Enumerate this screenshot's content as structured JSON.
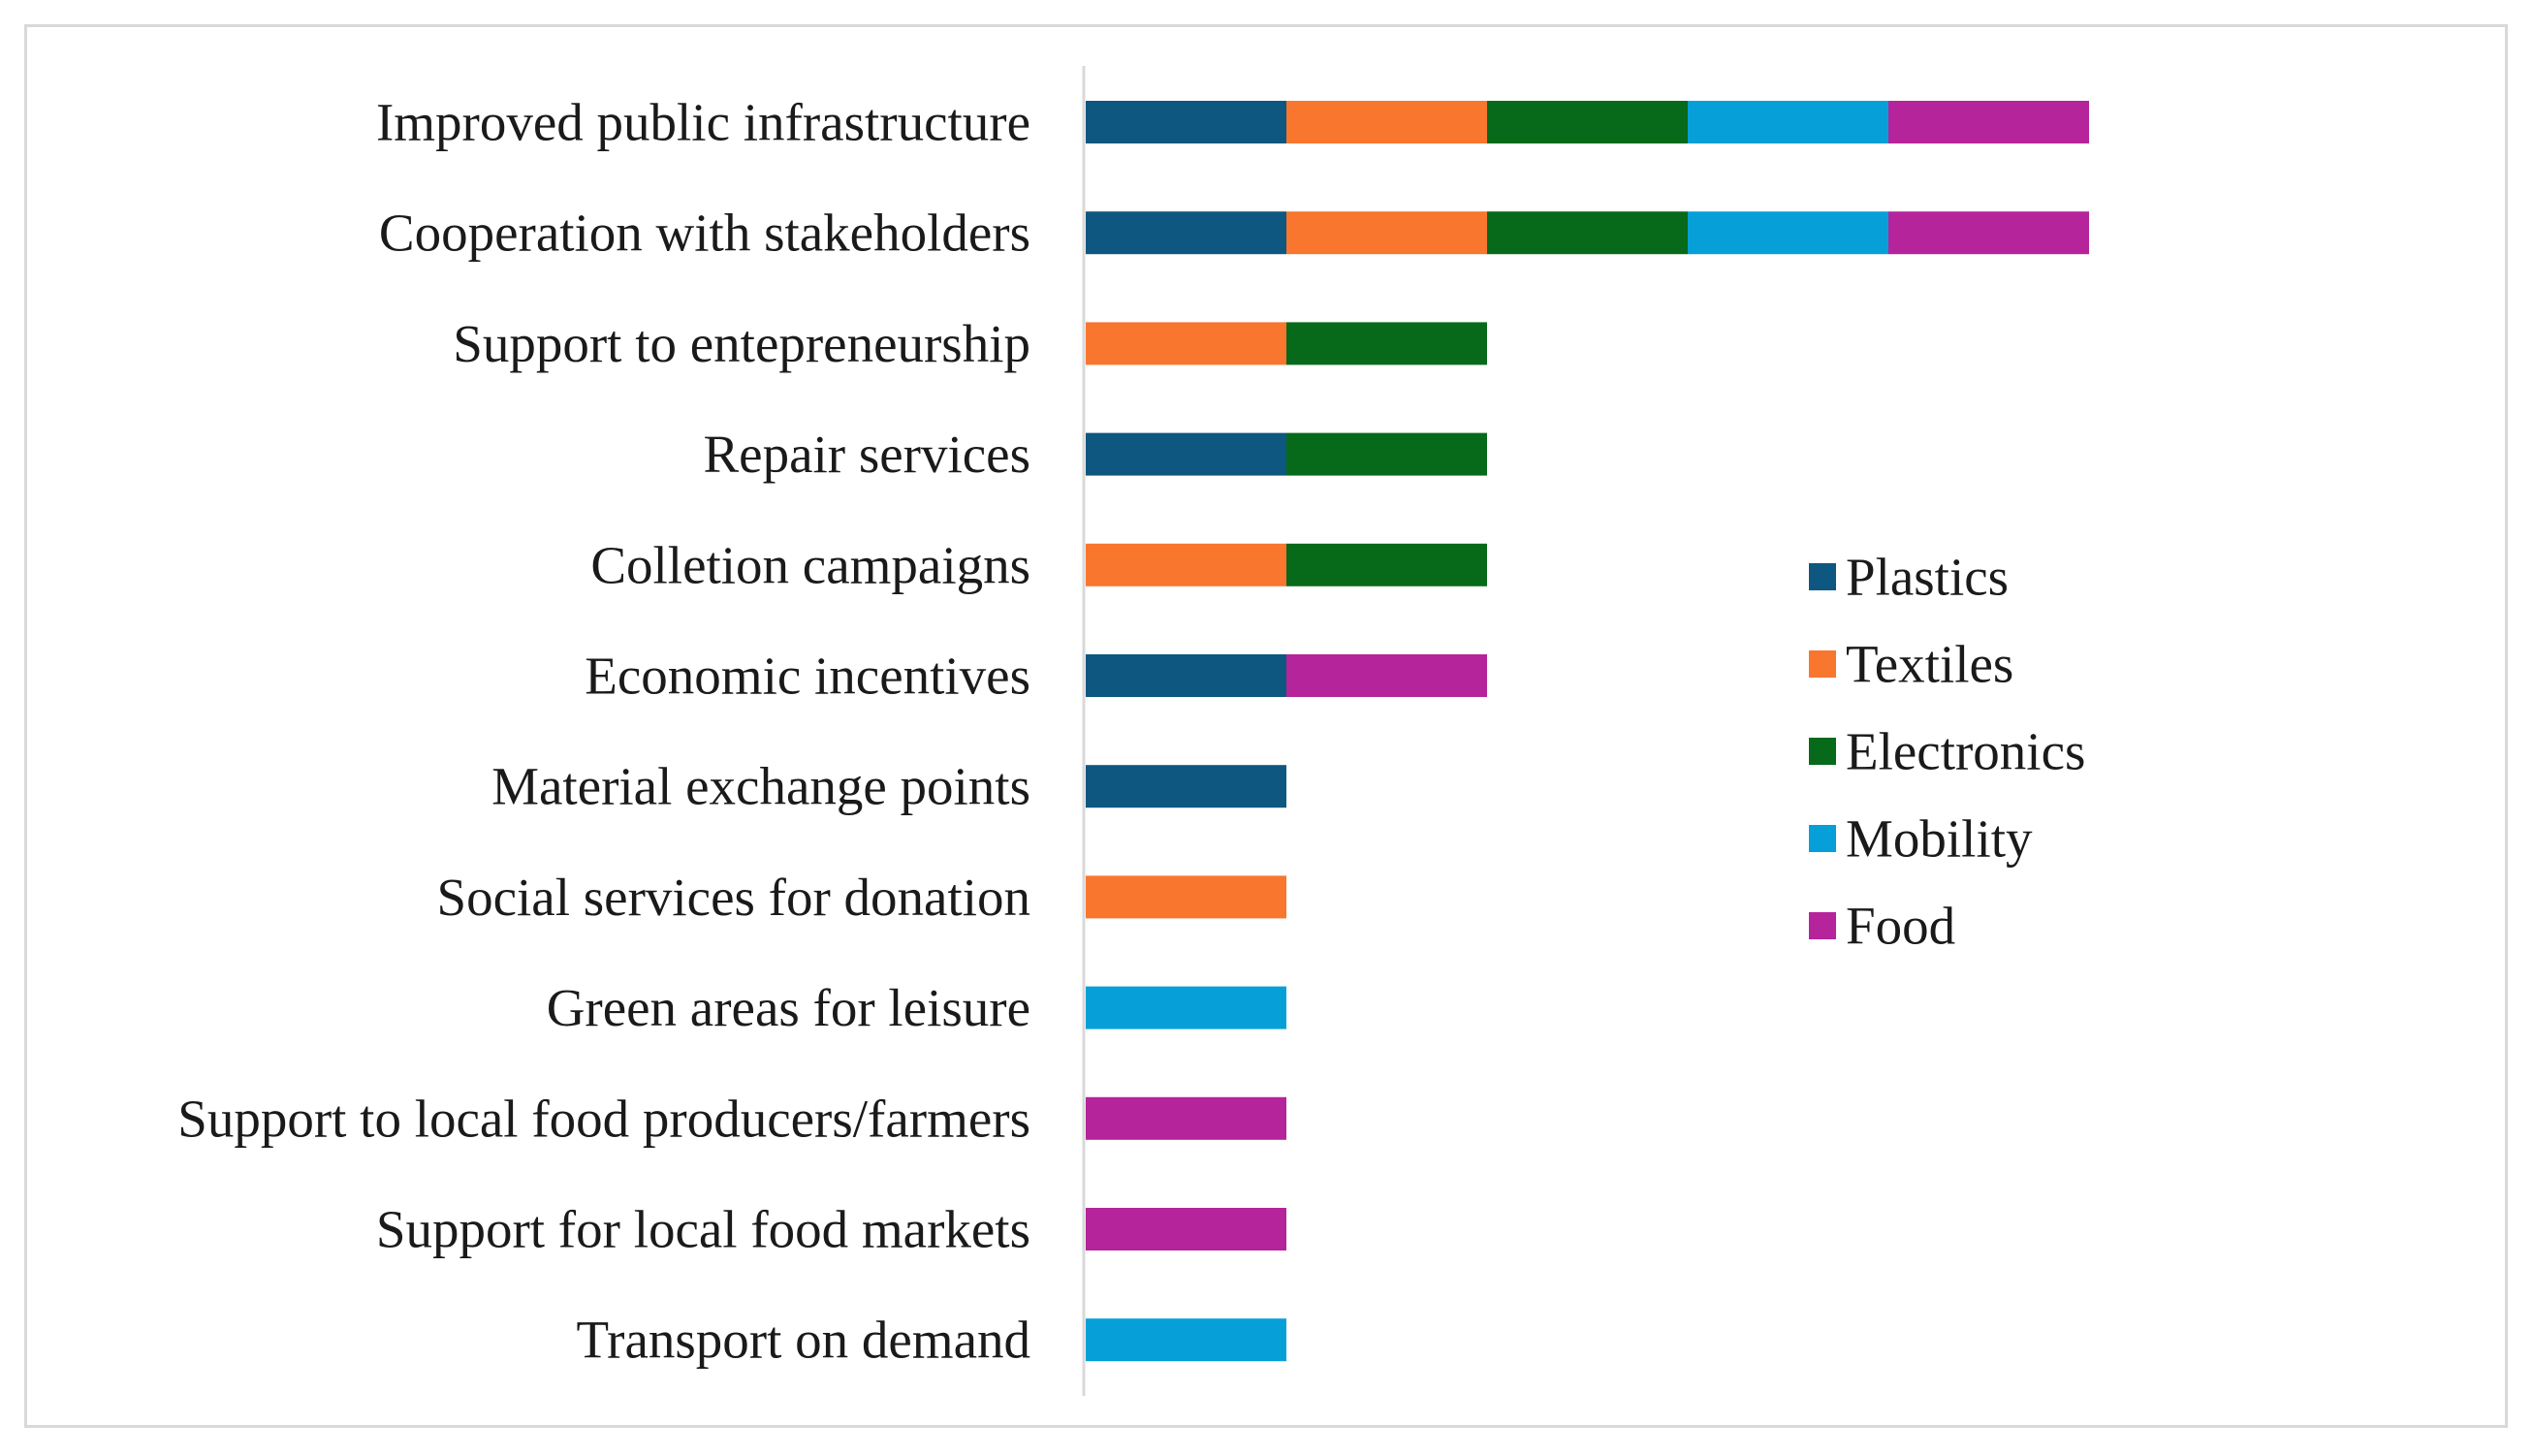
{
  "colors": {
    "Plastics": "#0d5780",
    "Textiles": "#f8762e",
    "Electronics": "#076a1a",
    "Mobility": "#069fd8",
    "Food": "#b5249a"
  },
  "chart_data": {
    "type": "bar",
    "orientation": "horizontal",
    "stacked": true,
    "title": "",
    "xlabel": "",
    "ylabel": "",
    "xlim": [
      0,
      5
    ],
    "grid": false,
    "legend_position": "right",
    "categories": [
      "Improved public infrastructure",
      "Cooperation with stakeholders",
      "Support to entepreneurship",
      "Repair services",
      "Colletion campaigns",
      "Economic incentives",
      "Material exchange points",
      "Social services for donation",
      "Green areas for leisure",
      "Support to local food producers/farmers",
      "Support for local food markets",
      "Transport on demand"
    ],
    "series": [
      {
        "name": "Plastics",
        "values": [
          1,
          1,
          0,
          1,
          0,
          1,
          1,
          0,
          0,
          0,
          0,
          0
        ]
      },
      {
        "name": "Textiles",
        "values": [
          1,
          1,
          1,
          0,
          1,
          0,
          0,
          1,
          0,
          0,
          0,
          0
        ]
      },
      {
        "name": "Electronics",
        "values": [
          1,
          1,
          1,
          1,
          1,
          0,
          0,
          0,
          0,
          0,
          0,
          0
        ]
      },
      {
        "name": "Mobility",
        "values": [
          1,
          1,
          0,
          0,
          0,
          0,
          0,
          0,
          1,
          0,
          0,
          1
        ]
      },
      {
        "name": "Food",
        "values": [
          1,
          1,
          0,
          0,
          0,
          1,
          0,
          0,
          0,
          1,
          1,
          0
        ]
      }
    ]
  }
}
